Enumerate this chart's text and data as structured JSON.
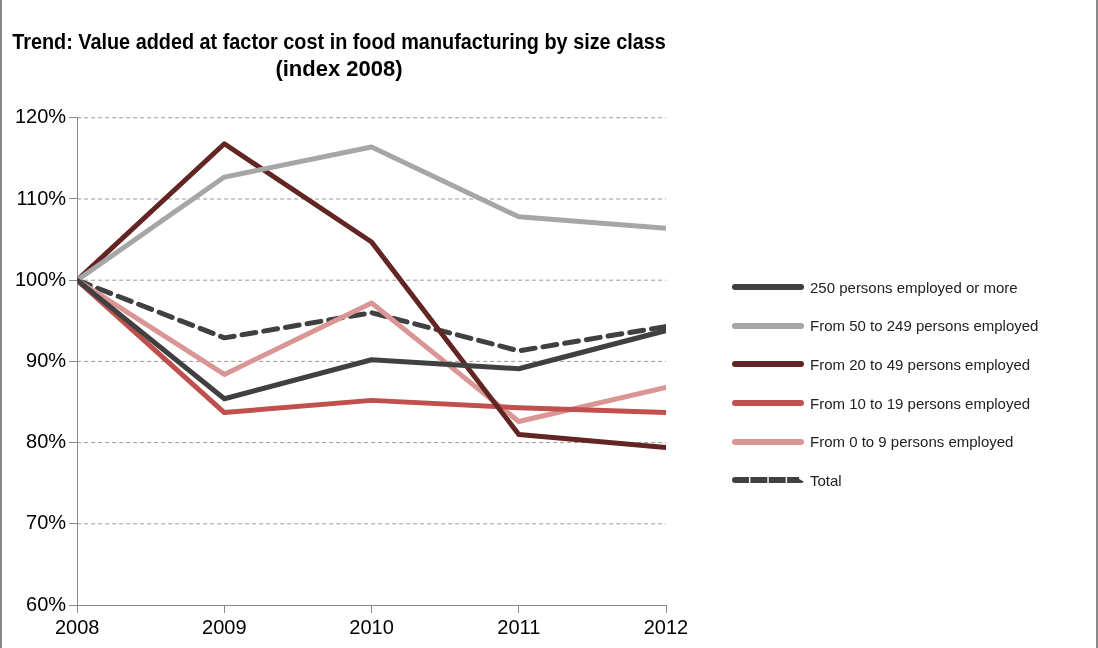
{
  "chart_data": {
    "type": "line",
    "title": "Trend: Value added at factor cost in food manufacturing by size class\n(index 2008)",
    "x": [
      2008,
      2009,
      2010,
      2011,
      2012
    ],
    "xlim": [
      2008,
      2012
    ],
    "xticks": [
      2008,
      2009,
      2010,
      2011,
      2012
    ],
    "ylim": [
      60,
      120
    ],
    "yticks": [
      {
        "value": 60,
        "label": "60%"
      },
      {
        "value": 70,
        "label": "70%"
      },
      {
        "value": 80,
        "label": "80%"
      },
      {
        "value": 90,
        "label": "90%"
      },
      {
        "value": 100,
        "label": "100%"
      },
      {
        "value": 110,
        "label": "110%"
      },
      {
        "value": 120,
        "label": "120%"
      }
    ],
    "grid": "y",
    "legend": "right",
    "marker": "none",
    "series": [
      {
        "name": "250 persons employed or more",
        "color": "#404040",
        "values": [
          100,
          85.4,
          90.2,
          89.1,
          93.8
        ]
      },
      {
        "name": "From 50 to 249 persons employed",
        "color": "#a6a6a6",
        "values": [
          100,
          112.7,
          116.4,
          107.8,
          106.4
        ]
      },
      {
        "name": "From 20 to 49 persons employed",
        "color": "#632523",
        "values": [
          100,
          116.8,
          104.7,
          81.0,
          79.4
        ]
      },
      {
        "name": "From 10 to 19 persons employed",
        "color": "#c0504d",
        "values": [
          100,
          83.7,
          85.2,
          84.3,
          83.7
        ]
      },
      {
        "name": "From 0 to 9 persons employed",
        "color": "#d99694",
        "values": [
          100,
          88.4,
          97.2,
          82.6,
          86.8
        ]
      },
      {
        "name": "Total",
        "color": "#404040",
        "line_style": "dashed",
        "values": [
          100,
          92.9,
          96.0,
          91.3,
          94.3
        ]
      }
    ]
  }
}
